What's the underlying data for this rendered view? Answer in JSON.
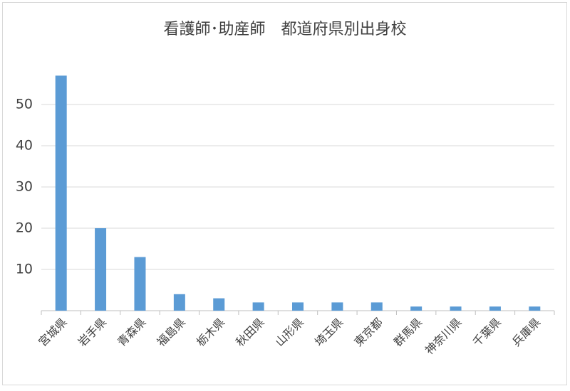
{
  "chart_data": {
    "type": "bar",
    "title": "看護師･助産師　都道府県別出身校",
    "categories": [
      "宮城県",
      "岩手県",
      "青森県",
      "福島県",
      "栃木県",
      "秋田県",
      "山形県",
      "埼玉県",
      "東京都",
      "群馬県",
      "神奈川県",
      "千葉県",
      "兵庫県"
    ],
    "values": [
      57,
      20,
      13,
      4,
      3,
      2,
      2,
      2,
      2,
      1,
      1,
      1,
      1
    ],
    "color": "#5b9bd5",
    "ylim": [
      0,
      60
    ],
    "yticks": [
      10,
      20,
      30,
      40,
      50
    ],
    "grid": true
  }
}
